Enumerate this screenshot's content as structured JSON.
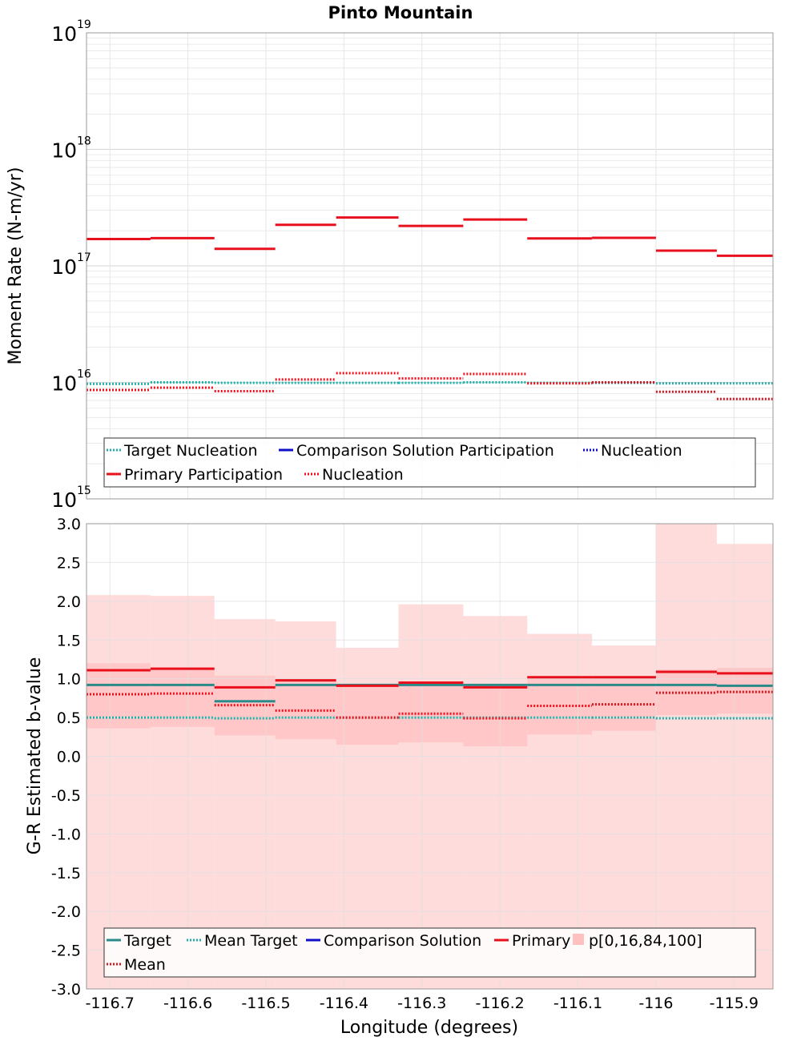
{
  "title": "Pinto Mountain",
  "colors": {
    "target": "#2a8a8a",
    "mean_target": "#20b2aa",
    "comparison": "#1010c8",
    "primary": "#e8101c",
    "mean": "#e8101c",
    "band": "#ffc0c0",
    "grid": "#e6e6e6",
    "axis": "#999999"
  },
  "chart_data": [
    {
      "type": "line",
      "style": "step",
      "ylabel": "Moment Rate (N-m/yr)",
      "yscale": "log",
      "ylim": [
        1000000000000000.0,
        1e+19
      ],
      "yticks": [
        {
          "base": "10",
          "exp": "15",
          "value": 15
        },
        {
          "base": "10",
          "exp": "16",
          "value": 16
        },
        {
          "base": "10",
          "exp": "17",
          "value": 17
        },
        {
          "base": "10",
          "exp": "18",
          "value": 18
        },
        {
          "base": "10",
          "exp": "19",
          "value": 19
        }
      ],
      "xlim": [
        -116.73,
        -115.85
      ],
      "bin_edges": [
        -116.73,
        -116.648,
        -116.566,
        -116.488,
        -116.41,
        -116.33,
        -116.247,
        -116.165,
        -116.082,
        -116.0,
        -115.922,
        -115.85
      ],
      "series": [
        {
          "name": "Target Nucleation",
          "style": "dotted",
          "color_key": "mean_target",
          "values": [
            9700000000000000.0,
            1e+16,
            9900000000000000.0,
            9900000000000000.0,
            9900000000000000.0,
            9900000000000000.0,
            1e+16,
            9900000000000000.0,
            9900000000000000.0,
            9800000000000000.0,
            9800000000000000.0
          ]
        },
        {
          "name": "Primary Participation",
          "style": "solid",
          "color_key": "primary",
          "values": [
            1.7e+17,
            1.73e+17,
            1.4e+17,
            2.25e+17,
            2.6e+17,
            2.2e+17,
            2.5e+17,
            1.72e+17,
            1.74e+17,
            1.35e+17,
            1.22e+17
          ]
        },
        {
          "name": "Nucleation",
          "style": "dotted",
          "color_key": "mean",
          "values": [
            8600000000000000.0,
            9000000000000000.0,
            8400000000000000.0,
            1.06e+16,
            1.2e+16,
            1.08e+16,
            1.18e+16,
            9800000000000000.0,
            1e+16,
            8300000000000000.0,
            7200000000000000.0
          ]
        }
      ],
      "legend": {
        "placement": "bottom",
        "entries": [
          {
            "label": "Target Nucleation",
            "style": "dotted",
            "color_key": "mean_target"
          },
          {
            "label": "Comparison Solution Participation",
            "style": "solid",
            "color_key": "comparison"
          },
          {
            "label": "Nucleation",
            "style": "dotted",
            "color_key": "comparison"
          },
          {
            "label": "Primary Participation",
            "style": "solid",
            "color_key": "primary"
          },
          {
            "label": "Nucleation",
            "style": "dotted",
            "color_key": "primary"
          }
        ]
      },
      "grid": true
    },
    {
      "type": "line",
      "style": "step",
      "xlabel": "Longitude (degrees)",
      "ylabel": "G-R Estimated b-value",
      "ylim": [
        -3.0,
        3.0
      ],
      "yticks": [
        "-3.0",
        "-2.5",
        "-2.0",
        "-1.5",
        "-1.0",
        "-0.5",
        "0.0",
        "0.5",
        "1.0",
        "1.5",
        "2.0",
        "2.5",
        "3.0"
      ],
      "xlim": [
        -116.73,
        -115.85
      ],
      "xticks": [
        "-116.7",
        "-116.6",
        "-116.5",
        "-116.4",
        "-116.3",
        "-116.2",
        "-116.1",
        "-116",
        "-115.9"
      ],
      "xtick_values": [
        -116.7,
        -116.6,
        -116.5,
        -116.4,
        -116.3,
        -116.2,
        -116.1,
        -116.0,
        -115.9
      ],
      "bin_edges": [
        -116.73,
        -116.648,
        -116.566,
        -116.488,
        -116.41,
        -116.33,
        -116.247,
        -116.165,
        -116.082,
        -116.0,
        -115.922,
        -115.85
      ],
      "band": {
        "name": "p[0,16,84,100]",
        "p0": [
          -3.0,
          -3.0,
          -3.0,
          -3.0,
          -3.0,
          -3.0,
          -3.0,
          -3.0,
          -3.0,
          -3.0,
          -3.0
        ],
        "p16": [
          0.36,
          0.38,
          0.27,
          0.22,
          0.15,
          0.18,
          0.13,
          0.28,
          0.33,
          0.53,
          0.55
        ],
        "p84": [
          1.2,
          1.15,
          1.04,
          0.99,
          0.93,
          0.97,
          0.91,
          1.04,
          1.04,
          1.12,
          1.14
        ],
        "p100": [
          2.08,
          2.07,
          1.77,
          1.74,
          1.4,
          1.96,
          1.81,
          1.58,
          1.43,
          3.0,
          2.74
        ]
      },
      "series": [
        {
          "name": "Target",
          "style": "solid",
          "color_key": "target",
          "values": [
            0.92,
            0.92,
            0.71,
            0.92,
            0.92,
            0.92,
            0.92,
            0.92,
            0.92,
            0.92,
            0.91
          ]
        },
        {
          "name": "Mean Target",
          "style": "dotted",
          "color_key": "mean_target",
          "values": [
            0.5,
            0.5,
            0.49,
            0.5,
            0.5,
            0.5,
            0.5,
            0.5,
            0.5,
            0.49,
            0.49
          ]
        },
        {
          "name": "Primary",
          "style": "solid",
          "color_key": "primary",
          "values": [
            1.11,
            1.13,
            0.89,
            0.98,
            0.91,
            0.95,
            0.89,
            1.02,
            1.02,
            1.09,
            1.07
          ]
        },
        {
          "name": "Mean",
          "style": "dotted",
          "color_key": "mean",
          "values": [
            0.8,
            0.81,
            0.66,
            0.59,
            0.5,
            0.55,
            0.49,
            0.65,
            0.67,
            0.82,
            0.83
          ]
        }
      ],
      "legend": {
        "placement": "bottom",
        "entries": [
          {
            "label": "Target",
            "style": "solid",
            "color_key": "target"
          },
          {
            "label": "Mean Target",
            "style": "dotted",
            "color_key": "mean_target"
          },
          {
            "label": "Comparison Solution",
            "style": "solid",
            "color_key": "comparison"
          },
          {
            "label": "Primary",
            "style": "solid",
            "color_key": "primary"
          },
          {
            "label": "p[0,16,84,100]",
            "style": "swatch",
            "color_key": "band"
          },
          {
            "label": "Mean",
            "style": "dotted",
            "color_key": "mean"
          }
        ]
      },
      "grid": true
    }
  ]
}
